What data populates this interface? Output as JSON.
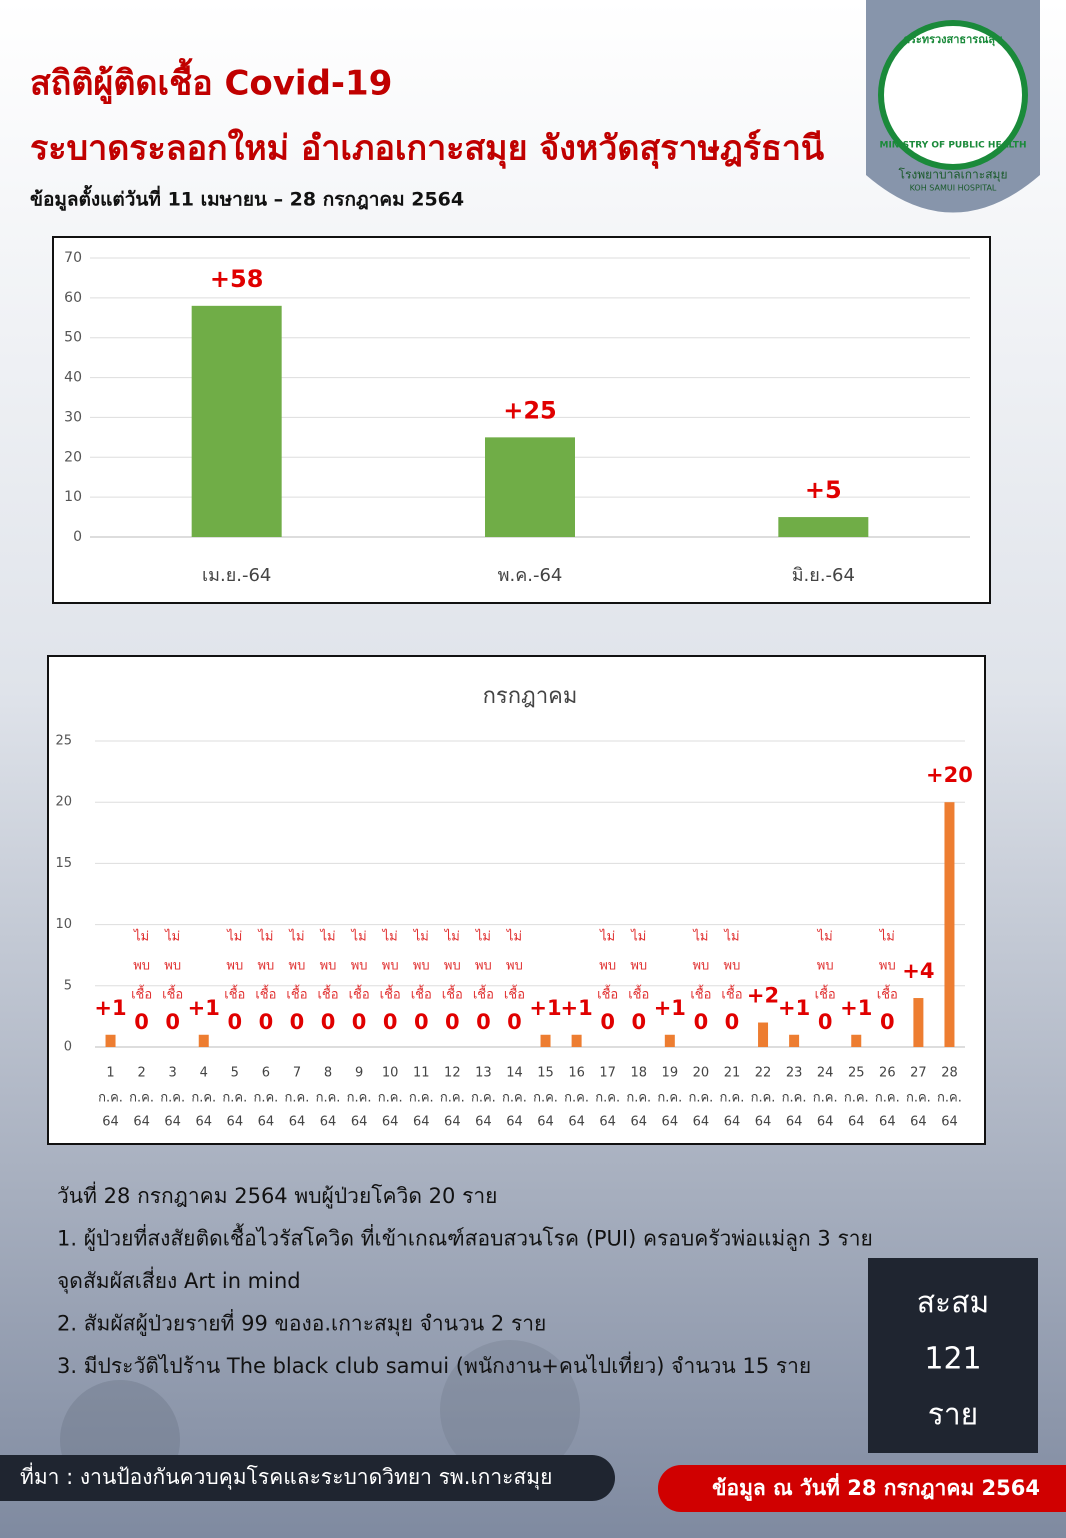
{
  "header": {
    "title": "สถิติผู้ติดเชื้อ Covid-19",
    "subtitle": "ระบาดระลอกใหม่ อำเภอเกาะสมุย จังหวัดสุราษฎร์ธานี",
    "period": "ข้อมูลตั้งแต่วันที่ 11 เมษายน – 28 กรกฎาคม 2564"
  },
  "logo": {
    "ministry_th": "กระทรวงสาธารณสุข",
    "ministry_en": "MINISTRY OF PUBLIC HEALTH",
    "hospital_th": "โรงพยาบาลเกาะสมุย",
    "hospital_en": "KOH SAMUI HOSPITAL"
  },
  "chart_data": [
    {
      "type": "bar",
      "categories": [
        "เม.ย.-64",
        "พ.ค.-64",
        "มิ.ย.-64"
      ],
      "values": [
        58,
        25,
        5
      ],
      "value_labels": [
        "+58",
        "+25",
        "+5"
      ],
      "color": "#70ad47",
      "ylim": [
        0,
        70
      ],
      "yticks": [
        0,
        10,
        20,
        30,
        40,
        50,
        60,
        70
      ],
      "grid": true
    },
    {
      "type": "bar",
      "title": "กรกฎาคม",
      "categories": [
        [
          "1",
          "ก.ค.",
          "64"
        ],
        [
          "2",
          "ก.ค.",
          "64"
        ],
        [
          "3",
          "ก.ค.",
          "64"
        ],
        [
          "4",
          "ก.ค.",
          "64"
        ],
        [
          "5",
          "ก.ค.",
          "64"
        ],
        [
          "6",
          "ก.ค.",
          "64"
        ],
        [
          "7",
          "ก.ค.",
          "64"
        ],
        [
          "8",
          "ก.ค.",
          "64"
        ],
        [
          "9",
          "ก.ค.",
          "64"
        ],
        [
          "10",
          "ก.ค.",
          "64"
        ],
        [
          "11",
          "ก.ค.",
          "64"
        ],
        [
          "12",
          "ก.ค.",
          "64"
        ],
        [
          "13",
          "ก.ค.",
          "64"
        ],
        [
          "14",
          "ก.ค.",
          "64"
        ],
        [
          "15",
          "ก.ค.",
          "64"
        ],
        [
          "16",
          "ก.ค.",
          "64"
        ],
        [
          "17",
          "ก.ค.",
          "64"
        ],
        [
          "18",
          "ก.ค.",
          "64"
        ],
        [
          "19",
          "ก.ค.",
          "64"
        ],
        [
          "20",
          "ก.ค.",
          "64"
        ],
        [
          "21",
          "ก.ค.",
          "64"
        ],
        [
          "22",
          "ก.ค.",
          "64"
        ],
        [
          "23",
          "ก.ค.",
          "64"
        ],
        [
          "24",
          "ก.ค.",
          "64"
        ],
        [
          "25",
          "ก.ค.",
          "64"
        ],
        [
          "26",
          "ก.ค.",
          "64"
        ],
        [
          "27",
          "ก.ค.",
          "64"
        ],
        [
          "28",
          "ก.ค.",
          "64"
        ]
      ],
      "values": [
        1,
        0,
        0,
        1,
        0,
        0,
        0,
        0,
        0,
        0,
        0,
        0,
        0,
        0,
        1,
        1,
        0,
        0,
        1,
        0,
        0,
        2,
        1,
        0,
        1,
        0,
        4,
        20
      ],
      "value_labels": [
        "+1",
        "0",
        "0",
        "+1",
        "0",
        "0",
        "0",
        "0",
        "0",
        "0",
        "0",
        "0",
        "0",
        "0",
        "+1",
        "+1",
        "0",
        "0",
        "+1",
        "0",
        "0",
        "+2",
        "+1",
        "0",
        "+1",
        "0",
        "+4",
        "+20"
      ],
      "zero_annotation": [
        "ไม่",
        "พบ",
        "เชื้อ"
      ],
      "color": "#ed7d31",
      "ylim": [
        0,
        25
      ],
      "yticks": [
        0,
        5,
        10,
        15,
        20,
        25
      ],
      "grid": true
    }
  ],
  "notes": [
    "วันที่ 28 กรกฎาคม 2564 พบผู้ป่วยโควิด 20 ราย",
    "1. ผู้ป่วยที่สงสัยติดเชื้อไวรัสโควิด ที่เข้าเกณฑ์สอบสวนโรค (PUI) ครอบครัวพ่อแม่ลูก  3 ราย",
    "จุดสัมผัสเสี่ยง Art in mind",
    "2. สัมผัสผู้ป่วยรายที่ 99 ของอ.เกาะสมุย จำนวน 2 ราย",
    "3. มีประวัติไปร้าน The black club samui (พนักงาน+คนไปเที่ยว) จำนวน 15 ราย"
  ],
  "total": {
    "label": "สะสม",
    "value": 121,
    "unit": "ราย"
  },
  "footer": {
    "source": "ที่มา : งานป้องกันควบคุมโรคและระบาดวิทยา รพ.เกาะสมุย",
    "date": "ข้อมูล ณ  วันที่ 28 กรกฎาคม 2564"
  }
}
